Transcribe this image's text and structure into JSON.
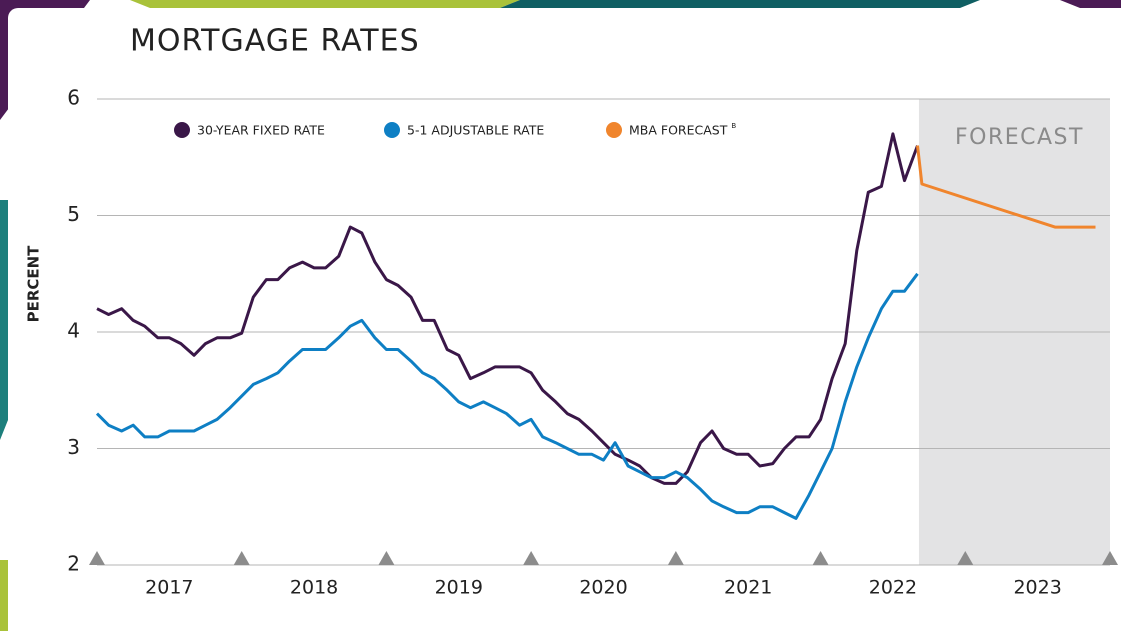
{
  "chart_data": {
    "type": "line",
    "title": "MORTGAGE RATES",
    "y_label": "PERCENT",
    "xlim": [
      2017,
      2024
    ],
    "xticks": [
      2017,
      2018,
      2019,
      2020,
      2021,
      2022,
      2023,
      2024
    ],
    "period_labels": [
      "2017",
      "2018",
      "2019",
      "2020",
      "2021",
      "2022",
      "2023"
    ],
    "ylim": [
      2,
      6
    ],
    "yticks": [
      2,
      3,
      4,
      5,
      6
    ],
    "grid": true,
    "forecast_region": {
      "label": "FORECAST",
      "start": 2022.68
    },
    "series": [
      {
        "name": "30-YEAR FIXED RATE",
        "color": "#3a1748",
        "x": [
          2017.0,
          2017.08,
          2017.17,
          2017.25,
          2017.33,
          2017.42,
          2017.5,
          2017.58,
          2017.67,
          2017.75,
          2017.83,
          2017.92,
          2018.0,
          2018.08,
          2018.17,
          2018.25,
          2018.33,
          2018.42,
          2018.5,
          2018.58,
          2018.67,
          2018.75,
          2018.83,
          2018.92,
          2019.0,
          2019.08,
          2019.17,
          2019.25,
          2019.33,
          2019.42,
          2019.5,
          2019.58,
          2019.67,
          2019.75,
          2019.83,
          2019.92,
          2020.0,
          2020.08,
          2020.17,
          2020.25,
          2020.33,
          2020.42,
          2020.5,
          2020.58,
          2020.67,
          2020.75,
          2020.83,
          2020.92,
          2021.0,
          2021.08,
          2021.17,
          2021.25,
          2021.33,
          2021.42,
          2021.5,
          2021.58,
          2021.67,
          2021.75,
          2021.83,
          2021.92,
          2022.0,
          2022.08,
          2022.17,
          2022.25,
          2022.33,
          2022.42,
          2022.5,
          2022.58,
          2022.67
        ],
        "values": [
          4.2,
          4.15,
          4.2,
          4.1,
          4.05,
          3.95,
          3.95,
          3.9,
          3.8,
          3.9,
          3.95,
          3.95,
          3.99,
          4.3,
          4.45,
          4.45,
          4.55,
          4.6,
          4.55,
          4.55,
          4.65,
          4.9,
          4.85,
          4.6,
          4.45,
          4.4,
          4.3,
          4.1,
          4.1,
          3.85,
          3.8,
          3.6,
          3.65,
          3.7,
          3.7,
          3.7,
          3.65,
          3.5,
          3.4,
          3.3,
          3.25,
          3.15,
          3.05,
          2.95,
          2.9,
          2.85,
          2.75,
          2.7,
          2.7,
          2.8,
          3.05,
          3.15,
          3.0,
          2.95,
          2.95,
          2.85,
          2.87,
          3.0,
          3.1,
          3.1,
          3.25,
          3.6,
          3.9,
          4.7,
          5.2,
          5.25,
          5.7,
          5.3,
          5.6
        ]
      },
      {
        "name": "5-1 ADJUSTABLE RATE",
        "color": "#0e7fc4",
        "x": [
          2017.0,
          2017.08,
          2017.17,
          2017.25,
          2017.33,
          2017.42,
          2017.5,
          2017.58,
          2017.67,
          2017.75,
          2017.83,
          2017.92,
          2018.0,
          2018.08,
          2018.17,
          2018.25,
          2018.33,
          2018.42,
          2018.5,
          2018.58,
          2018.67,
          2018.75,
          2018.83,
          2018.92,
          2019.0,
          2019.08,
          2019.17,
          2019.25,
          2019.33,
          2019.42,
          2019.5,
          2019.58,
          2019.67,
          2019.75,
          2019.83,
          2019.92,
          2020.0,
          2020.08,
          2020.17,
          2020.25,
          2020.33,
          2020.42,
          2020.5,
          2020.58,
          2020.67,
          2020.75,
          2020.83,
          2020.92,
          2021.0,
          2021.08,
          2021.17,
          2021.25,
          2021.33,
          2021.42,
          2021.5,
          2021.58,
          2021.67,
          2021.75,
          2021.83,
          2021.92,
          2022.0,
          2022.08,
          2022.17,
          2022.25,
          2022.33,
          2022.42,
          2022.5,
          2022.58,
          2022.67
        ],
        "values": [
          3.3,
          3.2,
          3.15,
          3.2,
          3.1,
          3.1,
          3.15,
          3.15,
          3.15,
          3.2,
          3.25,
          3.35,
          3.45,
          3.55,
          3.6,
          3.65,
          3.75,
          3.85,
          3.85,
          3.85,
          3.95,
          4.05,
          4.1,
          3.95,
          3.85,
          3.85,
          3.75,
          3.65,
          3.6,
          3.5,
          3.4,
          3.35,
          3.4,
          3.35,
          3.3,
          3.2,
          3.25,
          3.1,
          3.05,
          3.0,
          2.95,
          2.95,
          2.9,
          3.05,
          2.85,
          2.8,
          2.75,
          2.75,
          2.8,
          2.75,
          2.65,
          2.55,
          2.5,
          2.45,
          2.45,
          2.5,
          2.5,
          2.45,
          2.4,
          2.6,
          2.8,
          3.0,
          3.4,
          3.7,
          3.95,
          4.2,
          4.35,
          4.35,
          4.5
        ]
      },
      {
        "name": "MBA FORECAST",
        "name_note": "B",
        "color": "#f0852d",
        "x": [
          2022.67,
          2022.7,
          2023.62,
          2023.9
        ],
        "values": [
          5.6,
          5.27,
          4.9,
          4.9
        ]
      }
    ]
  }
}
